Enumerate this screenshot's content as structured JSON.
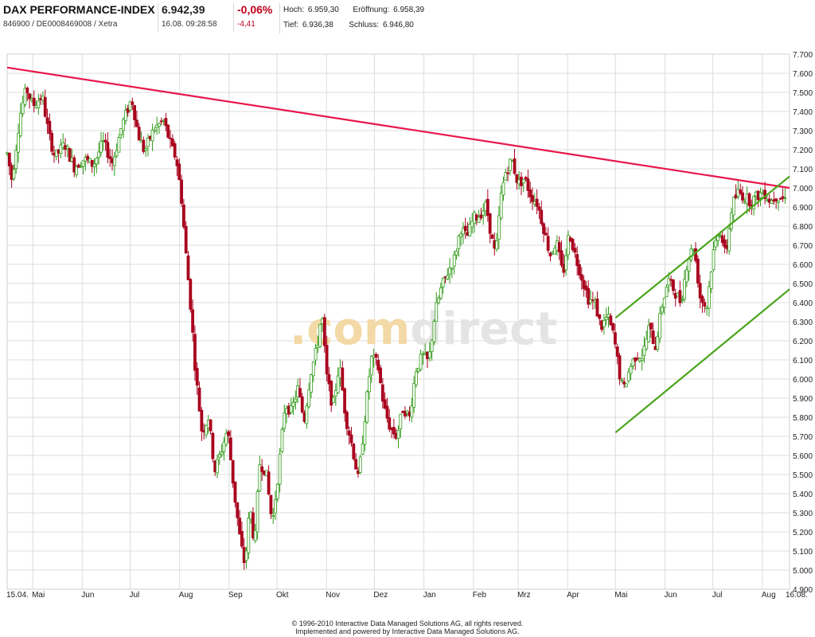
{
  "header": {
    "index_name": "DAX PERFORMANCE-INDEX",
    "wkn_isin": "846900 / DE0008469008 / Xetra",
    "last_price": "6.942,39",
    "timestamp": "16.08. 09:28:58",
    "change_pct": "-0,06%",
    "change_abs": "-4,41",
    "high_label": "Hoch:",
    "high_value": "6.959,30",
    "open_label": "Eröffnung:",
    "open_value": "6.958,39",
    "low_label": "Tief:",
    "low_value": "6.936,38",
    "close_label": "Schluss:",
    "close_value": "6.946,80"
  },
  "watermark": {
    "part1": ".com",
    "part2": "direct"
  },
  "footer": {
    "line1": "© 1996-2010 Interactive Data Managed Solutions AG, all rights reserved.",
    "line2": "Implemented and powered by Interactive Data Managed Solutions AG."
  },
  "colors": {
    "up": "#2f9a17",
    "down": "#a8001c",
    "resistance": "#e8174a",
    "channel": "#4aa51c",
    "grid": "#dcdcdc",
    "watermark_orange": "#f3d9a6",
    "watermark_grey": "#e4e4e4"
  },
  "chart_data": {
    "type": "candlestick",
    "instrument": "DAX PERFORMANCE-INDEX",
    "y_range": [
      4900,
      7700
    ],
    "y_ticks": [
      4900,
      5000,
      5100,
      5200,
      5300,
      5400,
      5500,
      5600,
      5700,
      5800,
      5900,
      6000,
      6100,
      6200,
      6300,
      6400,
      6500,
      6600,
      6700,
      6800,
      6900,
      7000,
      7100,
      7200,
      7300,
      7400,
      7500,
      7600,
      7700
    ],
    "y_tick_labels": [
      "4.900",
      "5.000",
      "5.100",
      "5.200",
      "5.300",
      "5.400",
      "5.500",
      "5.600",
      "5.700",
      "5.800",
      "5.900",
      "6.000",
      "6.100",
      "6.200",
      "6.300",
      "6.400",
      "6.500",
      "6.600",
      "6.700",
      "6.800",
      "6.900",
      "7.000",
      "7.100",
      "7.200",
      "7.300",
      "7.400",
      "7.500",
      "7.600",
      "7.700"
    ],
    "x_range_days": [
      0,
      490
    ],
    "x_ticks": [
      {
        "label": "15.04.",
        "day": 0
      },
      {
        "label": "Mai",
        "day": 16
      },
      {
        "label": "Jun",
        "day": 47
      },
      {
        "label": "Jul",
        "day": 77
      },
      {
        "label": "Aug",
        "day": 108
      },
      {
        "label": "Sep",
        "day": 139
      },
      {
        "label": "Okt",
        "day": 169
      },
      {
        "label": "Nov",
        "day": 200
      },
      {
        "label": "Dez",
        "day": 230
      },
      {
        "label": "Jan",
        "day": 261
      },
      {
        "label": "Feb",
        "day": 292
      },
      {
        "label": "Mrz",
        "day": 320
      },
      {
        "label": "Apr",
        "day": 351
      },
      {
        "label": "Mai",
        "day": 381
      },
      {
        "label": "Jun",
        "day": 412
      },
      {
        "label": "Jul",
        "day": 442
      },
      {
        "label": "Aug",
        "day": 473
      },
      {
        "label": "16.08.",
        "day": 488
      }
    ],
    "path_points": [
      [
        0,
        7180
      ],
      [
        3,
        7040
      ],
      [
        8,
        7380
      ],
      [
        12,
        7520
      ],
      [
        16,
        7430
      ],
      [
        22,
        7480
      ],
      [
        26,
        7280
      ],
      [
        30,
        7160
      ],
      [
        36,
        7230
      ],
      [
        42,
        7110
      ],
      [
        48,
        7150
      ],
      [
        54,
        7120
      ],
      [
        60,
        7240
      ],
      [
        66,
        7130
      ],
      [
        72,
        7330
      ],
      [
        78,
        7470
      ],
      [
        82,
        7280
      ],
      [
        86,
        7190
      ],
      [
        92,
        7310
      ],
      [
        98,
        7350
      ],
      [
        103,
        7210
      ],
      [
        106,
        7150
      ],
      [
        109,
        6960
      ],
      [
        112,
        6650
      ],
      [
        115,
        6370
      ],
      [
        118,
        6030
      ],
      [
        122,
        5720
      ],
      [
        126,
        5800
      ],
      [
        130,
        5520
      ],
      [
        134,
        5620
      ],
      [
        138,
        5740
      ],
      [
        142,
        5420
      ],
      [
        146,
        5150
      ],
      [
        149,
        5020
      ],
      [
        152,
        5340
      ],
      [
        155,
        5120
      ],
      [
        158,
        5560
      ],
      [
        162,
        5520
      ],
      [
        166,
        5240
      ],
      [
        170,
        5520
      ],
      [
        174,
        5870
      ],
      [
        178,
        5830
      ],
      [
        182,
        5950
      ],
      [
        186,
        5780
      ],
      [
        190,
        6030
      ],
      [
        194,
        6160
      ],
      [
        197,
        6350
      ],
      [
        200,
        6020
      ],
      [
        204,
        5850
      ],
      [
        208,
        6080
      ],
      [
        212,
        5800
      ],
      [
        216,
        5650
      ],
      [
        220,
        5470
      ],
      [
        224,
        5800
      ],
      [
        228,
        6110
      ],
      [
        232,
        6080
      ],
      [
        236,
        5850
      ],
      [
        240,
        5740
      ],
      [
        244,
        5700
      ],
      [
        248,
        5850
      ],
      [
        252,
        5800
      ],
      [
        256,
        6050
      ],
      [
        260,
        6120
      ],
      [
        264,
        6090
      ],
      [
        268,
        6350
      ],
      [
        272,
        6480
      ],
      [
        276,
        6560
      ],
      [
        280,
        6630
      ],
      [
        284,
        6790
      ],
      [
        288,
        6740
      ],
      [
        292,
        6840
      ],
      [
        296,
        6860
      ],
      [
        300,
        6910
      ],
      [
        304,
        6710
      ],
      [
        306,
        6640
      ],
      [
        309,
        6940
      ],
      [
        312,
        7080
      ],
      [
        316,
        7150
      ],
      [
        320,
        7020
      ],
      [
        324,
        7050
      ],
      [
        328,
        6960
      ],
      [
        332,
        6920
      ],
      [
        336,
        6790
      ],
      [
        340,
        6650
      ],
      [
        344,
        6720
      ],
      [
        348,
        6540
      ],
      [
        352,
        6770
      ],
      [
        356,
        6640
      ],
      [
        360,
        6530
      ],
      [
        364,
        6420
      ],
      [
        368,
        6400
      ],
      [
        372,
        6270
      ],
      [
        376,
        6330
      ],
      [
        380,
        6220
      ],
      [
        384,
        6000
      ],
      [
        386,
        5940
      ],
      [
        390,
        6060
      ],
      [
        394,
        6130
      ],
      [
        398,
        6120
      ],
      [
        402,
        6270
      ],
      [
        406,
        6170
      ],
      [
        410,
        6380
      ],
      [
        414,
        6520
      ],
      [
        418,
        6460
      ],
      [
        422,
        6400
      ],
      [
        426,
        6620
      ],
      [
        430,
        6700
      ],
      [
        434,
        6430
      ],
      [
        438,
        6370
      ],
      [
        442,
        6650
      ],
      [
        446,
        6800
      ],
      [
        450,
        6640
      ],
      [
        454,
        6910
      ],
      [
        458,
        6980
      ],
      [
        462,
        6950
      ],
      [
        466,
        6930
      ],
      [
        470,
        6960
      ],
      [
        474,
        6980
      ],
      [
        478,
        6930
      ],
      [
        482,
        6960
      ],
      [
        486,
        6945
      ],
      [
        488,
        6942
      ]
    ],
    "lines": [
      {
        "name": "resistance",
        "color": "resistance",
        "from": [
          0,
          7630
        ],
        "to": [
          490,
          7000
        ]
      },
      {
        "name": "channel-upper",
        "color": "channel",
        "from": [
          381,
          6320
        ],
        "to": [
          490,
          7060
        ]
      },
      {
        "name": "channel-lower",
        "color": "channel",
        "from": [
          381,
          5720
        ],
        "to": [
          490,
          6470
        ]
      }
    ],
    "grid": true
  }
}
